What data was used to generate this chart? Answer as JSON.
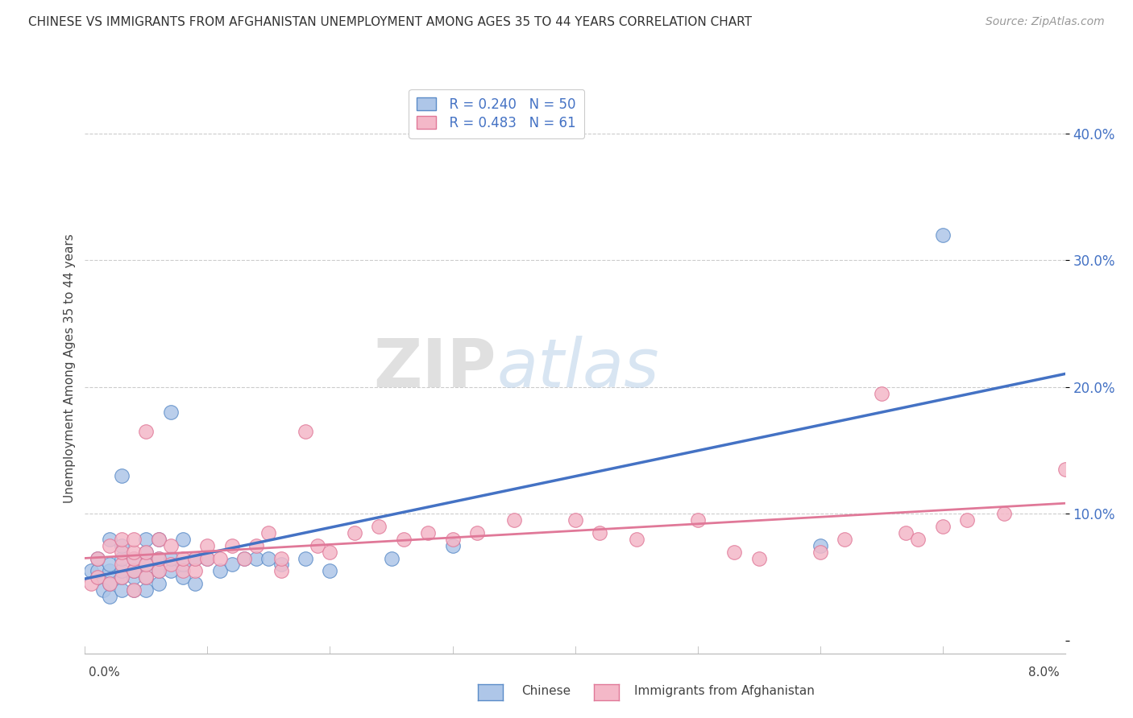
{
  "title": "CHINESE VS IMMIGRANTS FROM AFGHANISTAN UNEMPLOYMENT AMONG AGES 35 TO 44 YEARS CORRELATION CHART",
  "source": "Source: ZipAtlas.com",
  "ylabel": "Unemployment Among Ages 35 to 44 years",
  "legend_chinese_R": "R = 0.240",
  "legend_chinese_N": "N = 50",
  "legend_afghan_R": "R = 0.483",
  "legend_afghan_N": "N = 61",
  "chinese_color": "#AEC6E8",
  "chinese_edge_color": "#5B8CC8",
  "afghan_color": "#F4B8C8",
  "afghan_edge_color": "#E07898",
  "chinese_line_color": "#4472C4",
  "afghan_line_color": "#E07898",
  "r_n_color": "#4472C4",
  "background_color": "#FFFFFF",
  "grid_color": "#CCCCCC",
  "xlim": [
    0.0,
    0.08
  ],
  "ylim": [
    -0.01,
    0.44
  ],
  "yticks": [
    0.0,
    0.1,
    0.2,
    0.3,
    0.4
  ],
  "ytick_labels": [
    "",
    "10.0%",
    "20.0%",
    "30.0%",
    "40.0%"
  ],
  "chinese_x": [
    0.0005,
    0.001,
    0.001,
    0.001,
    0.0015,
    0.002,
    0.002,
    0.002,
    0.002,
    0.002,
    0.003,
    0.003,
    0.003,
    0.003,
    0.003,
    0.003,
    0.004,
    0.004,
    0.004,
    0.004,
    0.005,
    0.005,
    0.005,
    0.005,
    0.005,
    0.006,
    0.006,
    0.006,
    0.006,
    0.007,
    0.007,
    0.007,
    0.008,
    0.008,
    0.008,
    0.009,
    0.009,
    0.01,
    0.011,
    0.012,
    0.013,
    0.014,
    0.015,
    0.016,
    0.018,
    0.02,
    0.025,
    0.03,
    0.06,
    0.07
  ],
  "chinese_y": [
    0.055,
    0.05,
    0.055,
    0.065,
    0.04,
    0.035,
    0.045,
    0.055,
    0.06,
    0.08,
    0.04,
    0.05,
    0.055,
    0.065,
    0.075,
    0.13,
    0.04,
    0.05,
    0.055,
    0.065,
    0.04,
    0.05,
    0.06,
    0.07,
    0.08,
    0.045,
    0.055,
    0.065,
    0.08,
    0.055,
    0.065,
    0.18,
    0.05,
    0.06,
    0.08,
    0.045,
    0.065,
    0.065,
    0.055,
    0.06,
    0.065,
    0.065,
    0.065,
    0.06,
    0.065,
    0.055,
    0.065,
    0.075,
    0.075,
    0.32
  ],
  "afghan_x": [
    0.0005,
    0.001,
    0.001,
    0.002,
    0.002,
    0.003,
    0.003,
    0.003,
    0.003,
    0.004,
    0.004,
    0.004,
    0.004,
    0.004,
    0.005,
    0.005,
    0.005,
    0.005,
    0.006,
    0.006,
    0.006,
    0.007,
    0.007,
    0.008,
    0.008,
    0.009,
    0.009,
    0.01,
    0.01,
    0.011,
    0.012,
    0.013,
    0.014,
    0.015,
    0.016,
    0.016,
    0.018,
    0.019,
    0.02,
    0.022,
    0.024,
    0.026,
    0.028,
    0.03,
    0.032,
    0.035,
    0.04,
    0.042,
    0.045,
    0.05,
    0.053,
    0.055,
    0.06,
    0.062,
    0.065,
    0.067,
    0.068,
    0.07,
    0.072,
    0.075,
    0.08
  ],
  "afghan_y": [
    0.045,
    0.05,
    0.065,
    0.045,
    0.075,
    0.05,
    0.06,
    0.07,
    0.08,
    0.04,
    0.055,
    0.065,
    0.07,
    0.08,
    0.05,
    0.06,
    0.07,
    0.165,
    0.055,
    0.065,
    0.08,
    0.06,
    0.075,
    0.055,
    0.065,
    0.055,
    0.065,
    0.065,
    0.075,
    0.065,
    0.075,
    0.065,
    0.075,
    0.085,
    0.055,
    0.065,
    0.165,
    0.075,
    0.07,
    0.085,
    0.09,
    0.08,
    0.085,
    0.08,
    0.085,
    0.095,
    0.095,
    0.085,
    0.08,
    0.095,
    0.07,
    0.065,
    0.07,
    0.08,
    0.195,
    0.085,
    0.08,
    0.09,
    0.095,
    0.1,
    0.135
  ]
}
